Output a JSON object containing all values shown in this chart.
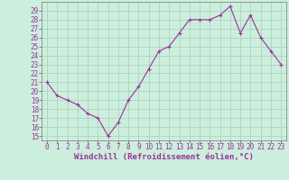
{
  "x": [
    0,
    1,
    2,
    3,
    4,
    5,
    6,
    7,
    8,
    9,
    10,
    11,
    12,
    13,
    14,
    15,
    16,
    17,
    18,
    19,
    20,
    21,
    22,
    23
  ],
  "y": [
    21,
    19.5,
    19,
    18.5,
    17.5,
    17,
    15,
    16.5,
    19,
    20.5,
    22.5,
    24.5,
    25,
    26.5,
    28,
    28,
    28,
    28.5,
    29.5,
    26.5,
    28.5,
    26,
    24.5,
    23
  ],
  "line_color": "#993399",
  "marker": "+",
  "marker_size": 3,
  "marker_lw": 0.8,
  "bg_color": "#cceedd",
  "grid_color": "#aaccbb",
  "xlabel": "Windchill (Refroidissement éolien,°C)",
  "ylabel": "",
  "xlim": [
    -0.5,
    23.5
  ],
  "ylim": [
    14.5,
    30
  ],
  "yticks": [
    15,
    16,
    17,
    18,
    19,
    20,
    21,
    22,
    23,
    24,
    25,
    26,
    27,
    28,
    29
  ],
  "xticks": [
    0,
    1,
    2,
    3,
    4,
    5,
    6,
    7,
    8,
    9,
    10,
    11,
    12,
    13,
    14,
    15,
    16,
    17,
    18,
    19,
    20,
    21,
    22,
    23
  ],
  "tick_color": "#993399",
  "label_color": "#993399",
  "axis_color": "#993399",
  "spine_color": "#777777",
  "tick_fontsize": 5.5,
  "xlabel_fontsize": 6.5,
  "linewidth": 0.8
}
